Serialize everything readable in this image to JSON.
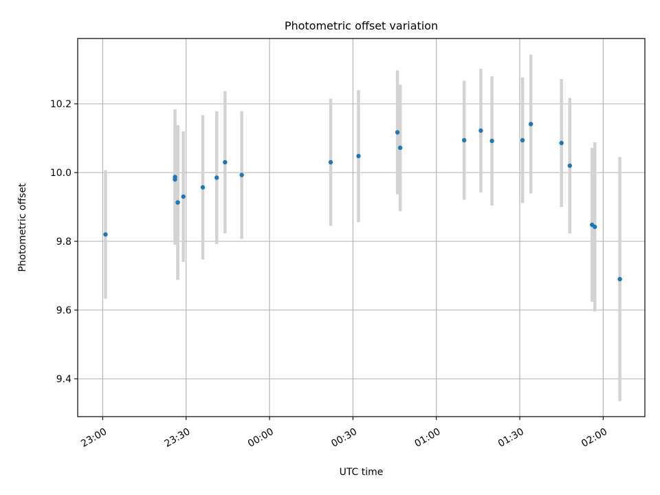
{
  "chart_data": {
    "type": "scatter",
    "title": "Photometric offset variation",
    "xlabel": "UTC time",
    "ylabel": "Photometric offset",
    "x_unit": "UTC time of night (overnight, crossing midnight)",
    "xticks": [
      "23:00",
      "23:30",
      "00:00",
      "00:30",
      "01:00",
      "01:30",
      "02:00"
    ],
    "yticks": [
      "9.4",
      "9.6",
      "9.8",
      "10.0",
      "10.2"
    ],
    "xlim": [
      "22:51",
      "02:15"
    ],
    "ylim": [
      9.29,
      10.39
    ],
    "grid": true,
    "colors": {
      "points": "#1f77b4",
      "errorbars": "#d3d3d3",
      "grid": "#b0b0b0"
    },
    "series": [
      {
        "x": [
          "23:01",
          "23:26",
          "23:26",
          "23:27",
          "23:27",
          "23:29",
          "23:36",
          "23:41",
          "23:44",
          "23:50",
          "00:22",
          "00:32",
          "00:46",
          "00:47",
          "01:10",
          "01:16",
          "01:20",
          "01:31",
          "01:34",
          "01:45",
          "01:48",
          "01:56",
          "01:57",
          "02:06"
        ],
        "y": [
          9.82,
          9.987,
          9.98,
          9.913,
          9.913,
          9.93,
          9.957,
          9.985,
          10.03,
          9.993,
          10.03,
          10.048,
          10.117,
          10.072,
          10.094,
          10.122,
          10.092,
          10.094,
          10.141,
          10.086,
          10.02,
          9.848,
          9.842,
          9.69
        ],
        "yerr": [
          0.187,
          0.197,
          0.161,
          0.225,
          0.225,
          0.19,
          0.21,
          0.193,
          0.207,
          0.186,
          0.185,
          0.192,
          0.18,
          0.184,
          0.173,
          0.18,
          0.188,
          0.183,
          0.202,
          0.186,
          0.197,
          0.224,
          0.246,
          0.355
        ]
      }
    ]
  }
}
